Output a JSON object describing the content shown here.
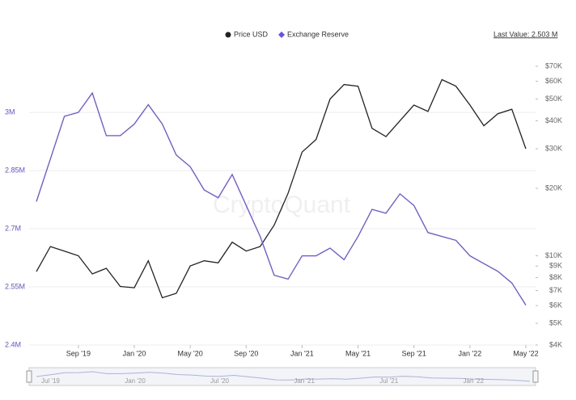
{
  "chart_data": {
    "type": "line",
    "legend": "top",
    "last_value": "Last Value: 2.503 M",
    "watermark": "CryptoQuant",
    "x": [
      "2019-06",
      "2019-07",
      "2019-08",
      "2019-09",
      "2019-10",
      "2019-11",
      "2019-12",
      "2020-01",
      "2020-02",
      "2020-03",
      "2020-04",
      "2020-05",
      "2020-06",
      "2020-07",
      "2020-08",
      "2020-09",
      "2020-10",
      "2020-11",
      "2020-12",
      "2021-01",
      "2021-02",
      "2021-03",
      "2021-04",
      "2021-05",
      "2021-06",
      "2021-07",
      "2021-08",
      "2021-09",
      "2021-10",
      "2021-11",
      "2021-12",
      "2022-01",
      "2022-02",
      "2022-03",
      "2022-04",
      "2022-05"
    ],
    "xlim": [
      "2019-06",
      "2022-05"
    ],
    "xticks": [
      {
        "value": "2019-09",
        "label": "Sep '19"
      },
      {
        "value": "2020-01",
        "label": "Jan '20"
      },
      {
        "value": "2020-05",
        "label": "May '20"
      },
      {
        "value": "2020-09",
        "label": "Sep '20"
      },
      {
        "value": "2021-01",
        "label": "Jan '21"
      },
      {
        "value": "2021-05",
        "label": "May '21"
      },
      {
        "value": "2021-09",
        "label": "Sep '21"
      },
      {
        "value": "2022-01",
        "label": "Jan '22"
      },
      {
        "value": "2022-05",
        "label": "May '22"
      }
    ],
    "series": [
      {
        "name": "Price USD",
        "color": "#222222",
        "axis": "y2",
        "values": [
          8500,
          11000,
          10500,
          10000,
          8300,
          8800,
          7300,
          7200,
          9500,
          6500,
          6800,
          9000,
          9500,
          9300,
          11500,
          10500,
          11000,
          13700,
          19000,
          29000,
          33000,
          50000,
          58000,
          57000,
          37000,
          34000,
          40000,
          47000,
          44000,
          61000,
          57000,
          47000,
          38000,
          43000,
          45000,
          30000
        ]
      },
      {
        "name": "Exchange Reserve",
        "color": "#6b4ef0",
        "axis": "y",
        "values": [
          2770000,
          2880000,
          2990000,
          3000000,
          3050000,
          2940000,
          2940000,
          2970000,
          3020000,
          2970000,
          2890000,
          2860000,
          2800000,
          2780000,
          2840000,
          2760000,
          2680000,
          2580000,
          2570000,
          2630000,
          2630000,
          2650000,
          2620000,
          2680000,
          2750000,
          2740000,
          2790000,
          2760000,
          2690000,
          2680000,
          2670000,
          2630000,
          2610000,
          2590000,
          2560000,
          2503000
        ]
      }
    ],
    "ylim": [
      2400000,
      3144000
    ],
    "yticks": [
      {
        "value": 2400000,
        "label": "2.4M"
      },
      {
        "value": 2550000,
        "label": "2.55M"
      },
      {
        "value": 2700000,
        "label": "2.7M"
      },
      {
        "value": 2850000,
        "label": "2.85M"
      },
      {
        "value": 3000000,
        "label": "3M"
      }
    ],
    "y2scale": "log",
    "y2lim": [
      4000,
      77300
    ],
    "y2ticks": [
      {
        "value": 70000,
        "label": "$70K"
      },
      {
        "value": 60000,
        "label": "$60K"
      },
      {
        "value": 50000,
        "label": "$50K"
      },
      {
        "value": 40000,
        "label": "$40K"
      },
      {
        "value": 30000,
        "label": "$30K"
      },
      {
        "value": 20000,
        "label": "$20K"
      },
      {
        "value": 10000,
        "label": "$10K"
      },
      {
        "value": 9000,
        "label": "$9K"
      },
      {
        "value": 8000,
        "label": "$8K"
      },
      {
        "value": 7000,
        "label": "$7K"
      },
      {
        "value": 6000,
        "label": "$6K"
      },
      {
        "value": 5000,
        "label": "$5K"
      },
      {
        "value": 4000,
        "label": "$4K"
      }
    ],
    "grid": true,
    "navigator": {
      "xticks": [
        {
          "value": "2019-07",
          "label": "Jul '19"
        },
        {
          "value": "2020-01",
          "label": "Jan '20"
        },
        {
          "value": "2020-07",
          "label": "Jul '20"
        },
        {
          "value": "2021-01",
          "label": "Jan '21"
        },
        {
          "value": "2021-07",
          "label": "Jul '21"
        },
        {
          "value": "2022-01",
          "label": "Jan '22"
        }
      ]
    }
  }
}
